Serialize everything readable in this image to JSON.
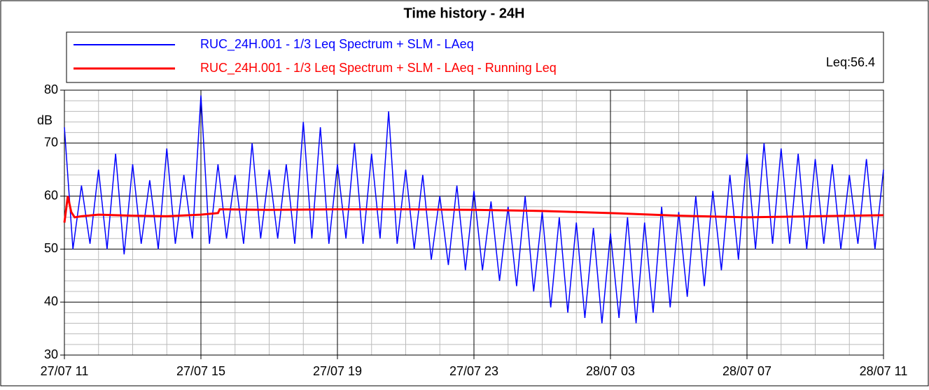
{
  "chart_data": {
    "type": "line",
    "title": "Time history - 24H",
    "ylabel": "dB",
    "annotation": "Leq:56.4",
    "xlim": [
      0,
      24
    ],
    "ylim": [
      30,
      80
    ],
    "xticks": [
      {
        "value": 0,
        "label": "27/07 11"
      },
      {
        "value": 4,
        "label": "27/07 15"
      },
      {
        "value": 8,
        "label": "27/07 19"
      },
      {
        "value": 12,
        "label": "27/07 23"
      },
      {
        "value": 16,
        "label": "28/07 03"
      },
      {
        "value": 20,
        "label": "28/07 07"
      },
      {
        "value": 24,
        "label": "28/07 11"
      }
    ],
    "yticks": [
      30,
      40,
      50,
      60,
      70,
      80
    ],
    "minor_xticks": [
      1,
      2,
      3,
      5,
      6,
      7,
      9,
      10,
      11,
      13,
      14,
      15,
      17,
      18,
      19,
      21,
      22,
      23
    ],
    "minor_yticks": [
      32,
      34,
      36,
      38,
      42,
      44,
      46,
      48,
      52,
      54,
      56,
      58,
      62,
      64,
      66,
      68,
      72,
      74,
      76,
      78
    ],
    "grid": true,
    "series": [
      {
        "name": "RUC_24H.001 - 1/3 Leq Spectrum + SLM - LAeq",
        "color": "#0000ff",
        "x": [
          0,
          0.25,
          0.5,
          0.75,
          1,
          1.25,
          1.5,
          1.75,
          2,
          2.25,
          2.5,
          2.75,
          3,
          3.25,
          3.5,
          3.75,
          4,
          4.25,
          4.5,
          4.75,
          5,
          5.25,
          5.5,
          5.75,
          6,
          6.25,
          6.5,
          6.75,
          7,
          7.25,
          7.5,
          7.75,
          8,
          8.25,
          8.5,
          8.75,
          9,
          9.25,
          9.5,
          9.75,
          10,
          10.25,
          10.5,
          10.75,
          11,
          11.25,
          11.5,
          11.75,
          12,
          12.25,
          12.5,
          12.75,
          13,
          13.25,
          13.5,
          13.75,
          14,
          14.25,
          14.5,
          14.75,
          15,
          15.25,
          15.5,
          15.75,
          16,
          16.25,
          16.5,
          16.75,
          17,
          17.25,
          17.5,
          17.75,
          18,
          18.25,
          18.5,
          18.75,
          19,
          19.25,
          19.5,
          19.75,
          20,
          20.25,
          20.5,
          20.75,
          21,
          21.25,
          21.5,
          21.75,
          22,
          22.25,
          22.5,
          22.75,
          23,
          23.25,
          23.5,
          23.75,
          24
        ],
        "values": [
          73,
          50,
          62,
          51,
          65,
          50,
          68,
          49,
          66,
          51,
          63,
          50,
          69,
          51,
          64,
          52,
          79,
          51,
          66,
          52,
          64,
          51,
          70,
          52,
          65,
          52,
          66,
          51,
          74,
          52,
          73,
          51,
          66,
          52,
          70,
          51,
          68,
          52,
          76,
          51,
          65,
          50,
          64,
          48,
          60,
          47,
          62,
          46,
          61,
          46,
          59,
          44,
          58,
          43,
          60,
          42,
          57,
          39,
          56,
          38,
          55,
          37,
          54,
          36,
          53,
          37,
          56,
          36,
          55,
          38,
          58,
          39,
          57,
          41,
          60,
          43,
          61,
          46,
          64,
          48,
          68,
          50,
          70,
          51,
          69,
          51,
          68,
          50,
          67,
          51,
          66,
          50,
          64,
          51,
          67,
          50,
          65
        ]
      },
      {
        "name": "RUC_24H.001 - 1/3 Leq Spectrum + SLM - LAeq - Running Leq",
        "color": "#ff0000",
        "x": [
          0,
          0.1,
          0.2,
          0.3,
          0.5,
          1,
          2,
          3,
          4,
          4.5,
          4.55,
          6,
          8,
          10,
          12,
          14,
          16,
          18,
          20,
          22,
          24
        ],
        "values": [
          55,
          60,
          57,
          56,
          56.2,
          56.5,
          56.3,
          56.2,
          56.5,
          56.8,
          57.5,
          57.4,
          57.5,
          57.5,
          57.4,
          57.2,
          56.8,
          56.3,
          56,
          56.2,
          56.4
        ]
      }
    ]
  }
}
